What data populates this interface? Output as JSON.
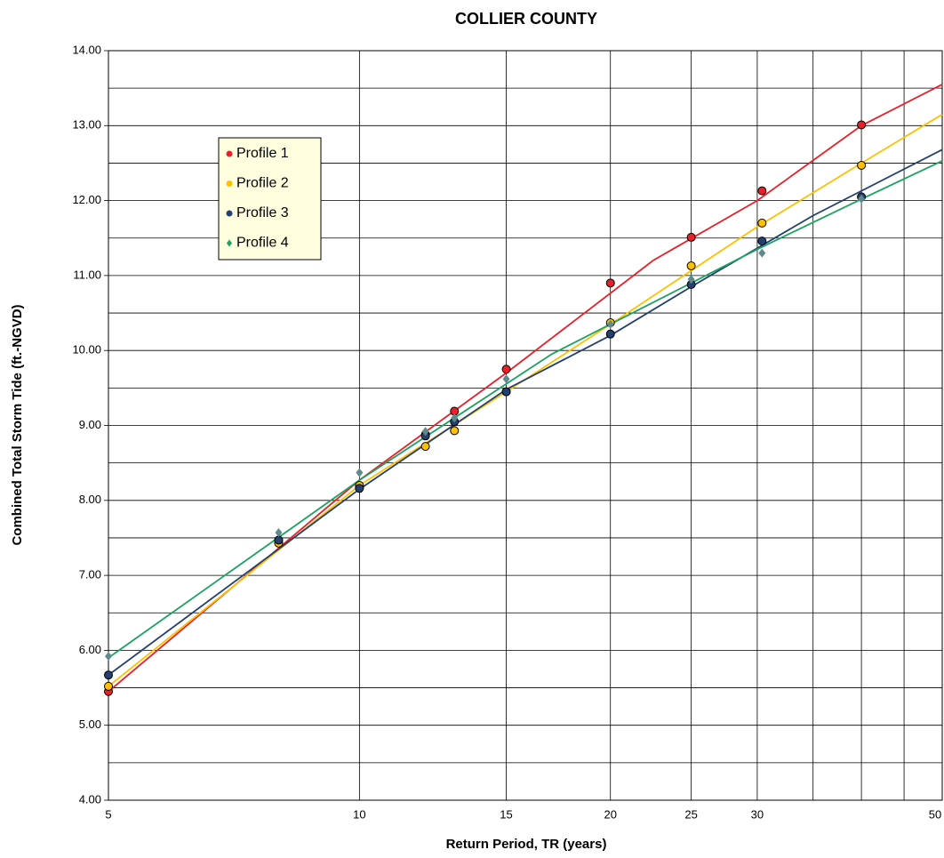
{
  "chart_data": {
    "type": "scatter",
    "title": "COLLIER COUNTY",
    "x_label": "Return Period, TR (years)",
    "y_label": "Combined Total Storm Tide (ft.-NGVD)",
    "log_x": true,
    "grid": true,
    "legend": "upper left",
    "x": [
      5,
      8,
      10,
      12,
      13,
      15,
      20,
      25,
      30.4,
      40
    ],
    "series": [
      {
        "name": "Profile 1",
        "color": "#e8202a",
        "marker": "circle",
        "marker_color": "#e8202a",
        "values": [
          5.45,
          7.47,
          8.18,
          8.88,
          9.19,
          9.75,
          10.9,
          11.51,
          12.13,
          13.01
        ],
        "fit_x": [
          5,
          10,
          15,
          17.5,
          22.5,
          30,
          40,
          50
        ],
        "fit_values": [
          5.45,
          8.27,
          9.7,
          10.27,
          11.2,
          12.0,
          13.0,
          13.55
        ]
      },
      {
        "name": "Profile 2",
        "color": "#ffc000",
        "marker": "circle",
        "marker_color": "#ffc000",
        "values": [
          5.52,
          7.43,
          8.2,
          8.72,
          8.93,
          9.45,
          10.37,
          11.13,
          11.7,
          12.47
        ],
        "fit_x": [
          5,
          10,
          15,
          20,
          30,
          40,
          50
        ],
        "fit_values": [
          5.52,
          8.2,
          9.45,
          10.35,
          11.65,
          12.5,
          13.15
        ]
      },
      {
        "name": "Profile 3",
        "color": "#24406e",
        "marker": "circle",
        "marker_color": "#24406e",
        "values": [
          5.67,
          7.47,
          8.16,
          8.86,
          9.05,
          9.45,
          10.22,
          10.88,
          11.46,
          12.05
        ],
        "fit_x": [
          5,
          10,
          15,
          20,
          25,
          35,
          50
        ],
        "fit_values": [
          5.67,
          8.15,
          9.48,
          10.2,
          10.85,
          11.8,
          12.68
        ]
      },
      {
        "name": "Profile 4",
        "color": "#1aa260",
        "marker": "diamond",
        "marker_color": "#5f8a8b",
        "values": [
          5.92,
          7.57,
          8.37,
          8.92,
          9.1,
          9.62,
          10.35,
          10.95,
          11.3,
          12.02
        ],
        "fit_x": [
          5,
          10,
          17,
          25,
          30,
          40,
          50
        ],
        "fit_values": [
          5.9,
          8.27,
          9.95,
          10.9,
          11.35,
          12.02,
          12.53
        ]
      }
    ],
    "xlim": [
      5,
      50
    ],
    "xticks": [
      5,
      10,
      15,
      20,
      25,
      30,
      50
    ],
    "xminor": [
      35,
      40,
      45
    ],
    "ylim": [
      4,
      14
    ],
    "yticks": [
      {
        "value": 4,
        "label": "4.00"
      },
      {
        "value": 5,
        "label": "5.00"
      },
      {
        "value": 6,
        "label": "6.00"
      },
      {
        "value": 7,
        "label": "7.00"
      },
      {
        "value": 8,
        "label": "8.00"
      },
      {
        "value": 9,
        "label": "9.00"
      },
      {
        "value": 10,
        "label": "10.00"
      },
      {
        "value": 11,
        "label": "11.00"
      },
      {
        "value": 12,
        "label": "12.00"
      },
      {
        "value": 13,
        "label": "13.00"
      },
      {
        "value": 14,
        "label": "14.00"
      }
    ],
    "yminor": [
      4.5,
      5.5,
      6.5,
      7.5,
      8.5,
      9.5,
      10.5,
      11.5,
      12.5,
      13.5
    ]
  }
}
